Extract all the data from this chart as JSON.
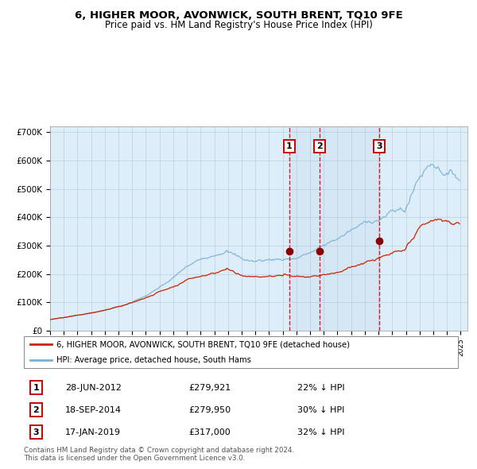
{
  "title": "6, HIGHER MOOR, AVONWICK, SOUTH BRENT, TQ10 9FE",
  "subtitle": "Price paid vs. HM Land Registry's House Price Index (HPI)",
  "hpi_color": "#7bafd4",
  "price_color": "#cc2200",
  "marker_color": "#880000",
  "background_color": "#ddeef8",
  "plot_bg": "#ffffff",
  "grid_color": "#b0c8e0",
  "ylim": [
    0,
    720000
  ],
  "ytick_labels": [
    "£0",
    "£100K",
    "£200K",
    "£300K",
    "£400K",
    "£500K",
    "£600K",
    "£700K"
  ],
  "ytick_values": [
    0,
    100000,
    200000,
    300000,
    400000,
    500000,
    600000,
    700000
  ],
  "legend_label_red": "6, HIGHER MOOR, AVONWICK, SOUTH BRENT, TQ10 9FE (detached house)",
  "legend_label_blue": "HPI: Average price, detached house, South Hams",
  "transactions": [
    {
      "num": 1,
      "date": "28-JUN-2012",
      "date_num": 2012.49,
      "price": 279921,
      "pct": "22%",
      "dir": "↓"
    },
    {
      "num": 2,
      "date": "18-SEP-2014",
      "date_num": 2014.71,
      "price": 279950,
      "pct": "30%",
      "dir": "↓"
    },
    {
      "num": 3,
      "date": "17-JAN-2019",
      "date_num": 2019.05,
      "price": 317000,
      "pct": "32%",
      "dir": "↓"
    }
  ],
  "footer": "Contains HM Land Registry data © Crown copyright and database right 2024.\nThis data is licensed under the Open Government Licence v3.0.",
  "xlim": [
    1995.0,
    2025.5
  ],
  "x_start": 1995,
  "x_end": 2026
}
